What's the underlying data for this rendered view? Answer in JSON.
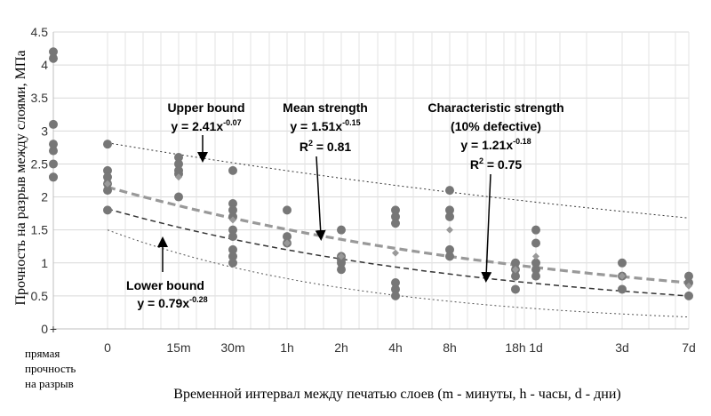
{
  "chart_data": {
    "type": "scatter",
    "xlabel": "Временной интервал между печатью слоев (m - минуты, h - часы, d  - дни)",
    "ylabel": "Прочность на разрыв между слоями, МПа",
    "ylim": [
      0,
      4.5
    ],
    "yticks": [
      "0",
      "0.5",
      "1",
      "1.5",
      "2",
      "2.5",
      "3",
      "3.5",
      "4",
      "4.5"
    ],
    "x_categories": [
      {
        "key": "direct",
        "label": "прямая прочность на разрыв",
        "lines": [
          "прямая",
          "прочность",
          "на разрыв"
        ]
      },
      {
        "key": "0",
        "label": "0"
      },
      {
        "key": "15m",
        "label": "15m"
      },
      {
        "key": "30m",
        "label": "30m"
      },
      {
        "key": "1h",
        "label": "1h"
      },
      {
        "key": "2h",
        "label": "2h"
      },
      {
        "key": "4h",
        "label": "4h"
      },
      {
        "key": "8h",
        "label": "8h"
      },
      {
        "key": "18h",
        "label": "18h"
      },
      {
        "key": "1d",
        "label": "1d"
      },
      {
        "key": "3d",
        "label": "3d"
      },
      {
        "key": "7d",
        "label": "7d"
      }
    ],
    "grid": true,
    "series": [
      {
        "kind": "measured",
        "color": "#777777",
        "points": [
          {
            "x": "direct",
            "values": [
              4.2,
              4.1,
              3.1,
              2.8,
              2.7,
              2.5,
              2.3,
              2.3
            ]
          },
          {
            "x": "0",
            "values": [
              2.8,
              2.4,
              2.3,
              2.2,
              2.1,
              1.8
            ]
          },
          {
            "x": "15m",
            "values": [
              2.6,
              2.5,
              2.4,
              2.35,
              2.0
            ]
          },
          {
            "x": "30m",
            "values": [
              2.4,
              1.9,
              1.8,
              1.7,
              1.5,
              1.4,
              1.2,
              1.1,
              1.0
            ]
          },
          {
            "x": "1h",
            "values": [
              1.8,
              1.4,
              1.3
            ]
          },
          {
            "x": "2h",
            "values": [
              1.5,
              1.1,
              1.05,
              1.0,
              0.9
            ]
          },
          {
            "x": "4h",
            "values": [
              1.8,
              1.7,
              1.6,
              0.7,
              0.6,
              0.5
            ]
          },
          {
            "x": "8h",
            "values": [
              2.1,
              1.8,
              1.7,
              1.2,
              1.1
            ]
          },
          {
            "x": "18h",
            "values": [
              1.0,
              0.9,
              0.8,
              0.6
            ]
          },
          {
            "x": "1d",
            "values": [
              1.5,
              1.3,
              1.0,
              0.9,
              0.8
            ]
          },
          {
            "x": "3d",
            "values": [
              1.0,
              0.8,
              0.6
            ]
          },
          {
            "x": "7d",
            "values": [
              0.8,
              0.7,
              0.5
            ]
          }
        ]
      },
      {
        "kind": "mean",
        "color": "#999999",
        "points": [
          {
            "x": "0",
            "value": 2.2
          },
          {
            "x": "15m",
            "value": 2.3
          },
          {
            "x": "30m",
            "value": 1.65
          },
          {
            "x": "1h",
            "value": 1.3
          },
          {
            "x": "2h",
            "value": 1.1
          },
          {
            "x": "4h",
            "value": 1.15
          },
          {
            "x": "8h",
            "value": 1.5
          },
          {
            "x": "18h",
            "value": 0.9
          },
          {
            "x": "1d",
            "value": 1.1
          },
          {
            "x": "3d",
            "value": 0.8
          },
          {
            "x": "7d",
            "value": 0.65
          }
        ]
      }
    ],
    "trendlines": [
      {
        "kind": "upper",
        "a": 2.41,
        "b": -0.07,
        "style": "dotted",
        "color": "#333333",
        "start": 2.82,
        "end": 1.68
      },
      {
        "kind": "mean",
        "a": 1.51,
        "b": -0.15,
        "style": "dashed-thick",
        "color": "#999999",
        "start": 2.15,
        "end": 0.7
      },
      {
        "kind": "characteristic",
        "a": 1.21,
        "b": -0.18,
        "style": "dashed",
        "color": "#333333",
        "start": 1.82,
        "end": 0.5
      },
      {
        "kind": "lower",
        "a": 0.79,
        "b": -0.28,
        "style": "dotted",
        "color": "#555555",
        "start": 1.5,
        "end": 0.18
      }
    ],
    "annotations": {
      "upper": {
        "line1": "Upper bound",
        "eq": "y = 2.41x",
        "exp": "-0.07"
      },
      "mean": {
        "line1": "Mean strength",
        "eq": "y = 1.51x",
        "exp": "-0.15",
        "r2": "R",
        "r2_val": " = 0.81"
      },
      "characteristic": {
        "line1": "Characteristic strength",
        "line2": "(10% defective)",
        "eq": "y = 1.21x",
        "exp": "-0.18",
        "r2": "R",
        "r2_val": " = 0.75"
      },
      "lower": {
        "line1": "Lower bound",
        "eq": "y = 0.79x",
        "exp": "-0.28"
      }
    }
  }
}
